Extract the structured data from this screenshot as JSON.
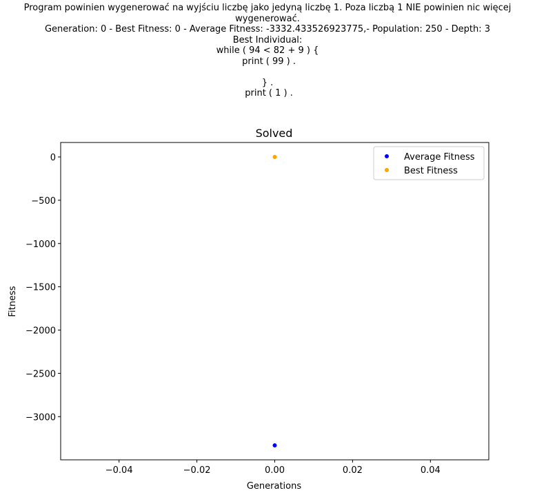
{
  "header": {
    "lines": [
      "Program powinien wygenerować na wyjściu liczbę jako jedyną liczbę 1. Poza liczbą 1 NIE powinien nic więcej",
      "wygenerować.",
      "Generation: 0 - Best Fitness: 0 - Average Fitness: -3332.433526923775,- Population: 250 - Depth: 3",
      "Best Individual:",
      "while ( 94 < 82 + 9 ) {",
      " print ( 99 ) .",
      "",
      "} .",
      " print ( 1 ) ."
    ]
  },
  "chart_data": {
    "type": "scatter",
    "title": "Solved",
    "xlabel": "Generations",
    "ylabel": "Fitness",
    "xlim": [
      -0.055,
      0.055
    ],
    "ylim": [
      -3499,
      167
    ],
    "xticks": [
      -0.04,
      -0.02,
      0.0,
      0.02,
      0.04
    ],
    "xtick_labels": [
      "−0.04",
      "−0.02",
      "0.00",
      "0.02",
      "0.04"
    ],
    "yticks": [
      0,
      -500,
      -1000,
      -1500,
      -2000,
      -2500,
      -3000
    ],
    "ytick_labels": [
      "0",
      "−500",
      "−1000",
      "−1500",
      "−2000",
      "−2500",
      "−3000"
    ],
    "grid": false,
    "legend_position": "top-right",
    "series": [
      {
        "name": "Average Fitness",
        "color": "#0000ff",
        "x": [
          0
        ],
        "y": [
          -3332.433526923775
        ]
      },
      {
        "name": "Best Fitness",
        "color": "#ffa500",
        "x": [
          0
        ],
        "y": [
          0
        ]
      }
    ]
  }
}
